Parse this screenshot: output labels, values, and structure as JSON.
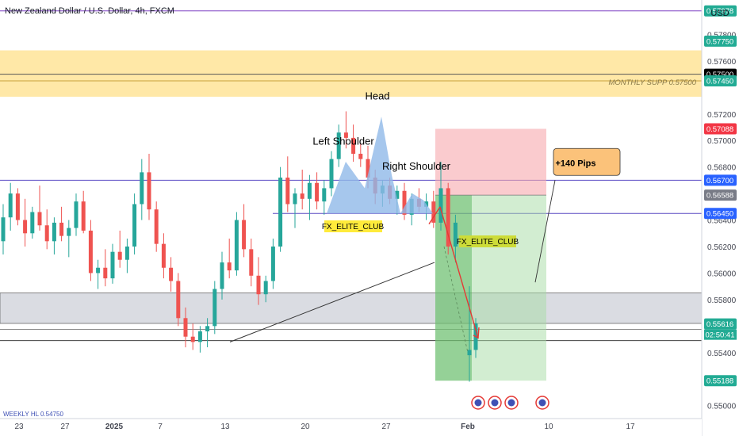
{
  "header": {
    "title": "New Zealand Dollar / U.S. Dollar, 4h, FXCM",
    "currency": "USD"
  },
  "chart_data": {
    "type": "candlestick",
    "ylim": [
      0.5495,
      0.5806
    ],
    "y_ticks": [
      {
        "value": 0.578,
        "label": "0.57800"
      },
      {
        "value": 0.576,
        "label": "0.57600"
      },
      {
        "value": 0.572,
        "label": "0.57200"
      },
      {
        "value": 0.57,
        "label": "0.57000"
      },
      {
        "value": 0.568,
        "label": "0.56800"
      },
      {
        "value": 0.564,
        "label": "0.56400"
      },
      {
        "value": 0.562,
        "label": "0.56200"
      },
      {
        "value": 0.56,
        "label": "0.56000"
      },
      {
        "value": 0.558,
        "label": "0.55800"
      },
      {
        "value": 0.554,
        "label": "0.55400"
      },
      {
        "value": 0.552,
        "label": "0.55200"
      },
      {
        "value": 0.55,
        "label": "0.55000"
      }
    ],
    "price_tags": [
      {
        "value": 0.57978,
        "label": "0.57978",
        "color": "#22ab94"
      },
      {
        "value": 0.5775,
        "label": "0.57750",
        "color": "#22ab94"
      },
      {
        "value": 0.575,
        "label": "0.57500",
        "color": "#000000"
      },
      {
        "value": 0.5745,
        "label": "0.57450",
        "color": "#22ab94"
      },
      {
        "value": 0.57088,
        "label": "0.57088",
        "color": "#f23645"
      },
      {
        "value": 0.567,
        "label": "0.56700",
        "color": "#2962ff"
      },
      {
        "value": 0.56588,
        "label": "0.56588",
        "color": "#787b86"
      },
      {
        "value": 0.5645,
        "label": "0.56450",
        "color": "#2962ff"
      },
      {
        "value": 0.55616,
        "label": "0.55616",
        "color": "#22ab94"
      },
      {
        "value": 0.55188,
        "label": "0.55188",
        "color": "#22ab94"
      }
    ],
    "countdown": "02:50:41",
    "x_ticks": [
      "23",
      "27",
      "2025",
      "7",
      "13",
      "20",
      "27",
      "Feb",
      "10",
      "17"
    ],
    "annotations": {
      "head": "Head",
      "left_shoulder": "Left Shoulder",
      "right_shoulder": "Right Shoulder",
      "pips": "+140 Pips",
      "monthly_supp": "MONTHLY SUPP 0.57500",
      "watermark_1": "FX_ELITE_CLUB",
      "watermark_2": "FX_ELITE_CLUB",
      "bottom_left": "WEEKLY HL 0.54750"
    },
    "levels": {
      "purple_top": 0.57978,
      "supply_zone": [
        0.5733,
        0.5768
      ],
      "monthly_line": 0.575,
      "lower_line": 0.5745,
      "neckline_blue": 0.567,
      "neckline_2": 0.5645,
      "grey_zone": [
        0.5562,
        0.5585
      ],
      "support_line": 0.55575,
      "black_line": 0.5549
    },
    "position": {
      "entry": 0.56588,
      "stop": 0.57088,
      "target": 0.55188
    },
    "candles": [
      {
        "t": 0,
        "o": 0.5624,
        "h": 0.5652,
        "l": 0.5614,
        "c": 0.5642
      },
      {
        "t": 1,
        "o": 0.5642,
        "h": 0.5668,
        "l": 0.5632,
        "c": 0.566
      },
      {
        "t": 2,
        "o": 0.566,
        "h": 0.5664,
        "l": 0.5636,
        "c": 0.564
      },
      {
        "t": 3,
        "o": 0.564,
        "h": 0.5656,
        "l": 0.562,
        "c": 0.563
      },
      {
        "t": 4,
        "o": 0.563,
        "h": 0.565,
        "l": 0.5626,
        "c": 0.5646
      },
      {
        "t": 5,
        "o": 0.5646,
        "h": 0.5666,
        "l": 0.5632,
        "c": 0.5636
      },
      {
        "t": 6,
        "o": 0.5636,
        "h": 0.5648,
        "l": 0.5618,
        "c": 0.5624
      },
      {
        "t": 7,
        "o": 0.5624,
        "h": 0.5642,
        "l": 0.5614,
        "c": 0.5638
      },
      {
        "t": 8,
        "o": 0.5638,
        "h": 0.565,
        "l": 0.5624,
        "c": 0.5628
      },
      {
        "t": 9,
        "o": 0.5628,
        "h": 0.564,
        "l": 0.5612,
        "c": 0.5634
      },
      {
        "t": 10,
        "o": 0.5634,
        "h": 0.566,
        "l": 0.5628,
        "c": 0.5654
      },
      {
        "t": 11,
        "o": 0.5654,
        "h": 0.5662,
        "l": 0.563,
        "c": 0.5632
      },
      {
        "t": 12,
        "o": 0.5632,
        "h": 0.564,
        "l": 0.5594,
        "c": 0.56
      },
      {
        "t": 13,
        "o": 0.56,
        "h": 0.561,
        "l": 0.5588,
        "c": 0.5604
      },
      {
        "t": 14,
        "o": 0.5604,
        "h": 0.5618,
        "l": 0.559,
        "c": 0.5596
      },
      {
        "t": 15,
        "o": 0.5596,
        "h": 0.5622,
        "l": 0.5592,
        "c": 0.5616
      },
      {
        "t": 16,
        "o": 0.5616,
        "h": 0.5632,
        "l": 0.5604,
        "c": 0.561
      },
      {
        "t": 17,
        "o": 0.561,
        "h": 0.5626,
        "l": 0.56,
        "c": 0.562
      },
      {
        "t": 18,
        "o": 0.562,
        "h": 0.566,
        "l": 0.5614,
        "c": 0.5652
      },
      {
        "t": 19,
        "o": 0.5652,
        "h": 0.5686,
        "l": 0.564,
        "c": 0.5676
      },
      {
        "t": 20,
        "o": 0.5676,
        "h": 0.569,
        "l": 0.564,
        "c": 0.5648
      },
      {
        "t": 21,
        "o": 0.5648,
        "h": 0.5654,
        "l": 0.5616,
        "c": 0.5622
      },
      {
        "t": 22,
        "o": 0.5622,
        "h": 0.563,
        "l": 0.5596,
        "c": 0.5604
      },
      {
        "t": 23,
        "o": 0.5604,
        "h": 0.5612,
        "l": 0.5586,
        "c": 0.5594
      },
      {
        "t": 24,
        "o": 0.5594,
        "h": 0.56,
        "l": 0.556,
        "c": 0.5566
      },
      {
        "t": 25,
        "o": 0.5566,
        "h": 0.5574,
        "l": 0.5544,
        "c": 0.5552
      },
      {
        "t": 26,
        "o": 0.5552,
        "h": 0.5562,
        "l": 0.5542,
        "c": 0.5548
      },
      {
        "t": 27,
        "o": 0.5548,
        "h": 0.556,
        "l": 0.554,
        "c": 0.5556
      },
      {
        "t": 28,
        "o": 0.5556,
        "h": 0.5566,
        "l": 0.5544,
        "c": 0.556
      },
      {
        "t": 29,
        "o": 0.556,
        "h": 0.5594,
        "l": 0.5554,
        "c": 0.5588
      },
      {
        "t": 30,
        "o": 0.5588,
        "h": 0.5616,
        "l": 0.558,
        "c": 0.5608
      },
      {
        "t": 31,
        "o": 0.5608,
        "h": 0.5626,
        "l": 0.5596,
        "c": 0.5602
      },
      {
        "t": 32,
        "o": 0.5602,
        "h": 0.5646,
        "l": 0.5598,
        "c": 0.564
      },
      {
        "t": 33,
        "o": 0.564,
        "h": 0.5652,
        "l": 0.5612,
        "c": 0.5618
      },
      {
        "t": 34,
        "o": 0.5618,
        "h": 0.5626,
        "l": 0.559,
        "c": 0.5598
      },
      {
        "t": 35,
        "o": 0.5598,
        "h": 0.5612,
        "l": 0.5576,
        "c": 0.5584
      },
      {
        "t": 36,
        "o": 0.5584,
        "h": 0.5598,
        "l": 0.5578,
        "c": 0.5594
      },
      {
        "t": 37,
        "o": 0.5594,
        "h": 0.5626,
        "l": 0.5588,
        "c": 0.562
      },
      {
        "t": 38,
        "o": 0.562,
        "h": 0.568,
        "l": 0.5616,
        "c": 0.5672
      },
      {
        "t": 39,
        "o": 0.5672,
        "h": 0.5688,
        "l": 0.5646,
        "c": 0.5652
      },
      {
        "t": 40,
        "o": 0.5652,
        "h": 0.5664,
        "l": 0.5634,
        "c": 0.566
      },
      {
        "t": 41,
        "o": 0.566,
        "h": 0.5678,
        "l": 0.5648,
        "c": 0.5656
      },
      {
        "t": 42,
        "o": 0.5656,
        "h": 0.5674,
        "l": 0.564,
        "c": 0.5668
      },
      {
        "t": 43,
        "o": 0.5668,
        "h": 0.5676,
        "l": 0.5648,
        "c": 0.5654
      },
      {
        "t": 44,
        "o": 0.5654,
        "h": 0.567,
        "l": 0.5644,
        "c": 0.5664
      },
      {
        "t": 45,
        "o": 0.5664,
        "h": 0.5692,
        "l": 0.5658,
        "c": 0.5686
      },
      {
        "t": 46,
        "o": 0.5686,
        "h": 0.5712,
        "l": 0.568,
        "c": 0.5706
      },
      {
        "t": 47,
        "o": 0.5706,
        "h": 0.5722,
        "l": 0.5694,
        "c": 0.5702
      },
      {
        "t": 48,
        "o": 0.5702,
        "h": 0.5712,
        "l": 0.5684,
        "c": 0.569
      },
      {
        "t": 49,
        "o": 0.569,
        "h": 0.5698,
        "l": 0.568,
        "c": 0.5686
      },
      {
        "t": 50,
        "o": 0.5686,
        "h": 0.5696,
        "l": 0.5664,
        "c": 0.5672
      },
      {
        "t": 51,
        "o": 0.5672,
        "h": 0.5678,
        "l": 0.5652,
        "c": 0.566
      },
      {
        "t": 52,
        "o": 0.566,
        "h": 0.567,
        "l": 0.565,
        "c": 0.5666
      },
      {
        "t": 53,
        "o": 0.5666,
        "h": 0.5672,
        "l": 0.5652,
        "c": 0.5656
      },
      {
        "t": 54,
        "o": 0.5656,
        "h": 0.5666,
        "l": 0.5644,
        "c": 0.5662
      },
      {
        "t": 55,
        "o": 0.5662,
        "h": 0.5668,
        "l": 0.564,
        "c": 0.5644
      },
      {
        "t": 56,
        "o": 0.5644,
        "h": 0.566,
        "l": 0.5636,
        "c": 0.5656
      },
      {
        "t": 57,
        "o": 0.5656,
        "h": 0.5664,
        "l": 0.5646,
        "c": 0.565
      },
      {
        "t": 58,
        "o": 0.565,
        "h": 0.566,
        "l": 0.564,
        "c": 0.5654
      },
      {
        "t": 59,
        "o": 0.5654,
        "h": 0.5662,
        "l": 0.5634,
        "c": 0.5638
      },
      {
        "t": 60,
        "o": 0.5638,
        "h": 0.5684,
        "l": 0.5632,
        "c": 0.5664
      },
      {
        "t": 61,
        "o": 0.5664,
        "h": 0.5668,
        "l": 0.5614,
        "c": 0.562
      },
      {
        "t": 62,
        "o": 0.562,
        "h": 0.5644,
        "l": 0.5608,
        "c": 0.5638
      },
      {
        "t": 63,
        "o": 0.5538,
        "h": 0.559,
        "l": 0.5518,
        "c": 0.5542
      },
      {
        "t": 64,
        "o": 0.5542,
        "h": 0.5566,
        "l": 0.5536,
        "c": 0.5562
      }
    ]
  }
}
